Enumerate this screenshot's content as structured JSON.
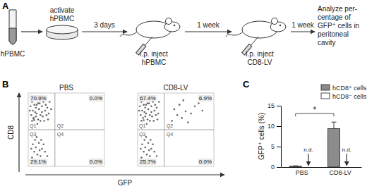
{
  "panels": [
    "A",
    "B",
    "C"
  ],
  "diagram": {
    "tube_label": "hPBMC",
    "steps": [
      {
        "text": [
          "activate",
          "hPBMC"
        ]
      },
      {
        "text": [
          "3 days"
        ]
      },
      {
        "text": [
          "i.p. inject",
          "hPBMC"
        ]
      },
      {
        "text": [
          "1 week"
        ]
      },
      {
        "text": [
          "i.p. inject",
          "CD8-LV"
        ]
      },
      {
        "text": [
          "1 week"
        ]
      },
      {
        "text": [
          "Analyze per-",
          "centage of",
          "GFP⁺ cells in",
          "peritoneal",
          "cavity"
        ]
      }
    ]
  },
  "chart_data": [
    {
      "type": "scatter",
      "title": "PBS",
      "xlabel": "GFP",
      "ylabel": "CD8",
      "xlim": [
        0,
        100
      ],
      "ylim": [
        0,
        100
      ],
      "tick_labels": false,
      "gates": {
        "x": 35,
        "y": 50
      },
      "quadrants": {
        "labels": [
          "Q1",
          "Q2",
          "Q3",
          "Q4"
        ],
        "values": [
          70.9,
          0.0,
          29.1,
          0.0
        ],
        "value_labels": [
          "70.9%",
          "0.0%",
          "29.1%",
          "0.0%"
        ]
      },
      "x": [
        5,
        8,
        12,
        15,
        10,
        6,
        14,
        18,
        20,
        9,
        4,
        11,
        16,
        22,
        7,
        13,
        19,
        25,
        3,
        17,
        24,
        8,
        12,
        21,
        27,
        6,
        15,
        10,
        18,
        23,
        2,
        13,
        28,
        5,
        16,
        11,
        20,
        26,
        9,
        14,
        30,
        7,
        6,
        10,
        14,
        8,
        12,
        18,
        5,
        16,
        20,
        9,
        13,
        22,
        4,
        17,
        11,
        25,
        7,
        15
      ],
      "y": [
        88,
        84,
        90,
        86,
        80,
        76,
        78,
        82,
        88,
        92,
        70,
        72,
        70,
        76,
        66,
        64,
        68,
        80,
        82,
        93,
        70,
        63,
        58,
        62,
        72,
        94,
        96,
        68,
        74,
        84,
        76,
        86,
        88,
        62,
        62,
        84,
        94,
        64,
        74,
        92,
        78,
        65,
        30,
        26,
        32,
        20,
        16,
        24,
        12,
        14,
        30,
        36,
        8,
        20,
        24,
        36,
        40,
        14,
        6,
        22
      ]
    },
    {
      "type": "scatter",
      "title": "CD8-LV",
      "xlim": [
        0,
        100
      ],
      "ylim": [
        0,
        100
      ],
      "tick_labels": false,
      "gates": {
        "x": 35,
        "y": 50
      },
      "quadrants": {
        "labels": [
          "Q1",
          "Q2",
          "Q3",
          "Q4"
        ],
        "values": [
          67.4,
          6.9,
          25.7,
          0.0
        ],
        "value_labels": [
          "67.4%",
          "6.9%",
          "25.7%",
          "0.0%"
        ]
      },
      "x": [
        5,
        8,
        12,
        15,
        10,
        6,
        14,
        18,
        20,
        9,
        4,
        11,
        16,
        22,
        7,
        13,
        19,
        25,
        3,
        17,
        24,
        8,
        12,
        21,
        27,
        6,
        15,
        10,
        18,
        23,
        2,
        13,
        28,
        5,
        16,
        11,
        20,
        26,
        9,
        14,
        45,
        52,
        58,
        63,
        70,
        48,
        75,
        66,
        80,
        55,
        85,
        60,
        6,
        10,
        14,
        8,
        12,
        18,
        5,
        16,
        20,
        9,
        13,
        22,
        4,
        17,
        11,
        25,
        7,
        15
      ],
      "y": [
        88,
        84,
        90,
        86,
        80,
        76,
        78,
        82,
        88,
        92,
        70,
        72,
        70,
        76,
        66,
        64,
        68,
        80,
        82,
        93,
        70,
        63,
        58,
        62,
        72,
        94,
        96,
        68,
        74,
        84,
        76,
        86,
        88,
        62,
        62,
        84,
        94,
        64,
        74,
        92,
        62,
        70,
        66,
        75,
        72,
        78,
        82,
        60,
        86,
        84,
        76,
        90,
        30,
        26,
        32,
        20,
        16,
        24,
        12,
        14,
        30,
        36,
        8,
        20,
        24,
        36,
        40,
        14,
        6,
        22
      ]
    },
    {
      "type": "bar",
      "ylabel": "GFP⁺ cells (%)",
      "categories": [
        "PBS",
        "CD8-LV"
      ],
      "ylim": [
        0,
        15
      ],
      "yticks": [
        0,
        5,
        10,
        15
      ],
      "grid": false,
      "legend": "top-right",
      "series": [
        {
          "name": "hCD8⁺ cells",
          "color": "#8c8c8c",
          "values": [
            0.2,
            9.4
          ],
          "errors": [
            0.1,
            1.6
          ]
        },
        {
          "name": "hCD8⁻ cells",
          "color": "#ffffff",
          "values": [
            null,
            null
          ],
          "value_labels": [
            "n.d.",
            "n.d."
          ]
        }
      ],
      "annotations": [
        {
          "text": "*"
        }
      ]
    }
  ]
}
